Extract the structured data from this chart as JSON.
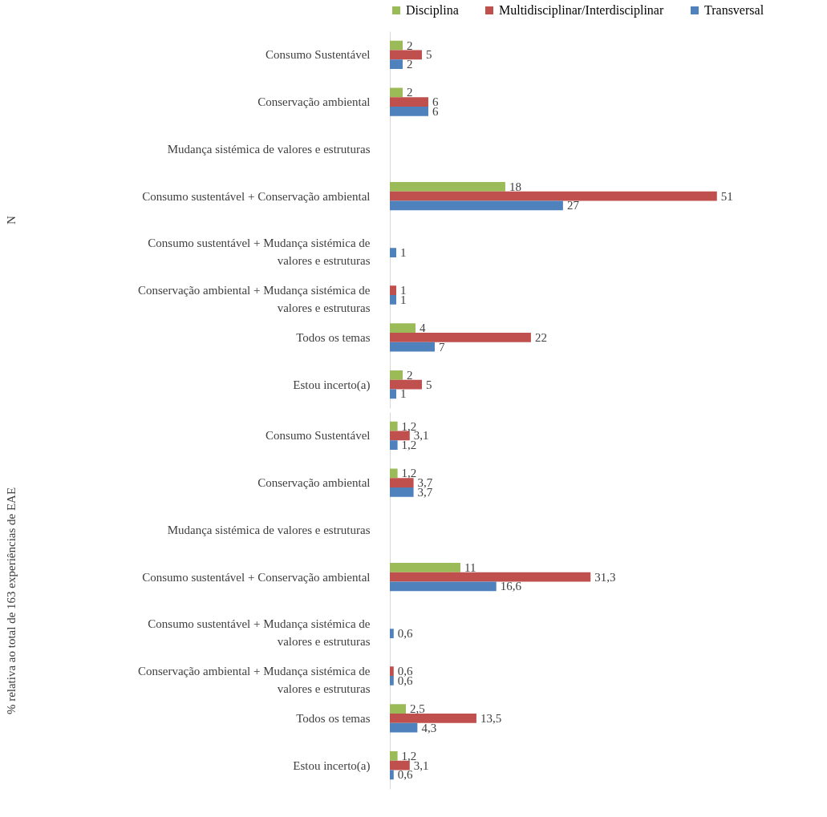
{
  "chart_data": [
    {
      "type": "bar",
      "orientation": "horizontal",
      "ylabel": "N",
      "legend": "top",
      "categories": [
        "Consumo Sustentável",
        "Conservação ambiental",
        "Mudança sistémica de valores e estruturas",
        "Consumo sustentável + Conservação ambiental",
        "Consumo sustentável + Mudança sistémica de valores e estruturas",
        "Conservação ambiental + Mudança sistémica de valores e estruturas",
        "Todos os temas",
        "Estou incerto(a)"
      ],
      "series": [
        {
          "name": "Disciplina",
          "color": "#9bbb59",
          "values": [
            2,
            2,
            null,
            18,
            null,
            null,
            4,
            2
          ],
          "value_labels": [
            "2",
            "2",
            null,
            "18",
            null,
            null,
            "4",
            "2"
          ]
        },
        {
          "name": "Multidisciplinar/Interdisciplinar",
          "color": "#c0504d",
          "values": [
            5,
            6,
            null,
            51,
            null,
            1,
            22,
            5
          ],
          "value_labels": [
            "5",
            "6",
            null,
            "51",
            null,
            "1",
            "22",
            "5"
          ]
        },
        {
          "name": "Transversal",
          "color": "#4f81bd",
          "values": [
            2,
            6,
            null,
            27,
            1,
            1,
            7,
            1
          ],
          "value_labels": [
            "2",
            "6",
            null,
            "27",
            "1",
            "1",
            "7",
            "1"
          ]
        }
      ]
    },
    {
      "type": "bar",
      "orientation": "horizontal",
      "ylabel": "% relativa ao total de 163 experiências de EAE",
      "legend": false,
      "categories": [
        "Consumo Sustentável",
        "Conservação ambiental",
        "Mudança sistémica de valores e estruturas",
        "Consumo sustentável + Conservação ambiental",
        "Consumo sustentável + Mudança sistémica de valores e estruturas",
        "Conservação ambiental + Mudança sistémica de valores e estruturas",
        "Todos os temas",
        "Estou incerto(a)"
      ],
      "series": [
        {
          "name": "Disciplina",
          "color": "#9bbb59",
          "values": [
            1.2,
            1.2,
            null,
            11,
            null,
            null,
            2.5,
            1.2
          ],
          "value_labels": [
            "1,2",
            "1,2",
            null,
            "11",
            null,
            null,
            "2,5",
            "1,2"
          ]
        },
        {
          "name": "Multidisciplinar/Interdisciplinar",
          "color": "#c0504d",
          "values": [
            3.1,
            3.7,
            null,
            31.3,
            null,
            0.6,
            13.5,
            3.1
          ],
          "value_labels": [
            "3,1",
            "3,7",
            null,
            "31,3",
            null,
            "0,6",
            "13,5",
            "3,1"
          ]
        },
        {
          "name": "Transversal",
          "color": "#4f81bd",
          "values": [
            1.2,
            3.7,
            null,
            16.6,
            0.6,
            0.6,
            4.3,
            0.6
          ],
          "value_labels": [
            "1,2",
            "3,7",
            null,
            "16,6",
            "0,6",
            "0,6",
            "4,3",
            "0,6"
          ]
        }
      ]
    }
  ]
}
